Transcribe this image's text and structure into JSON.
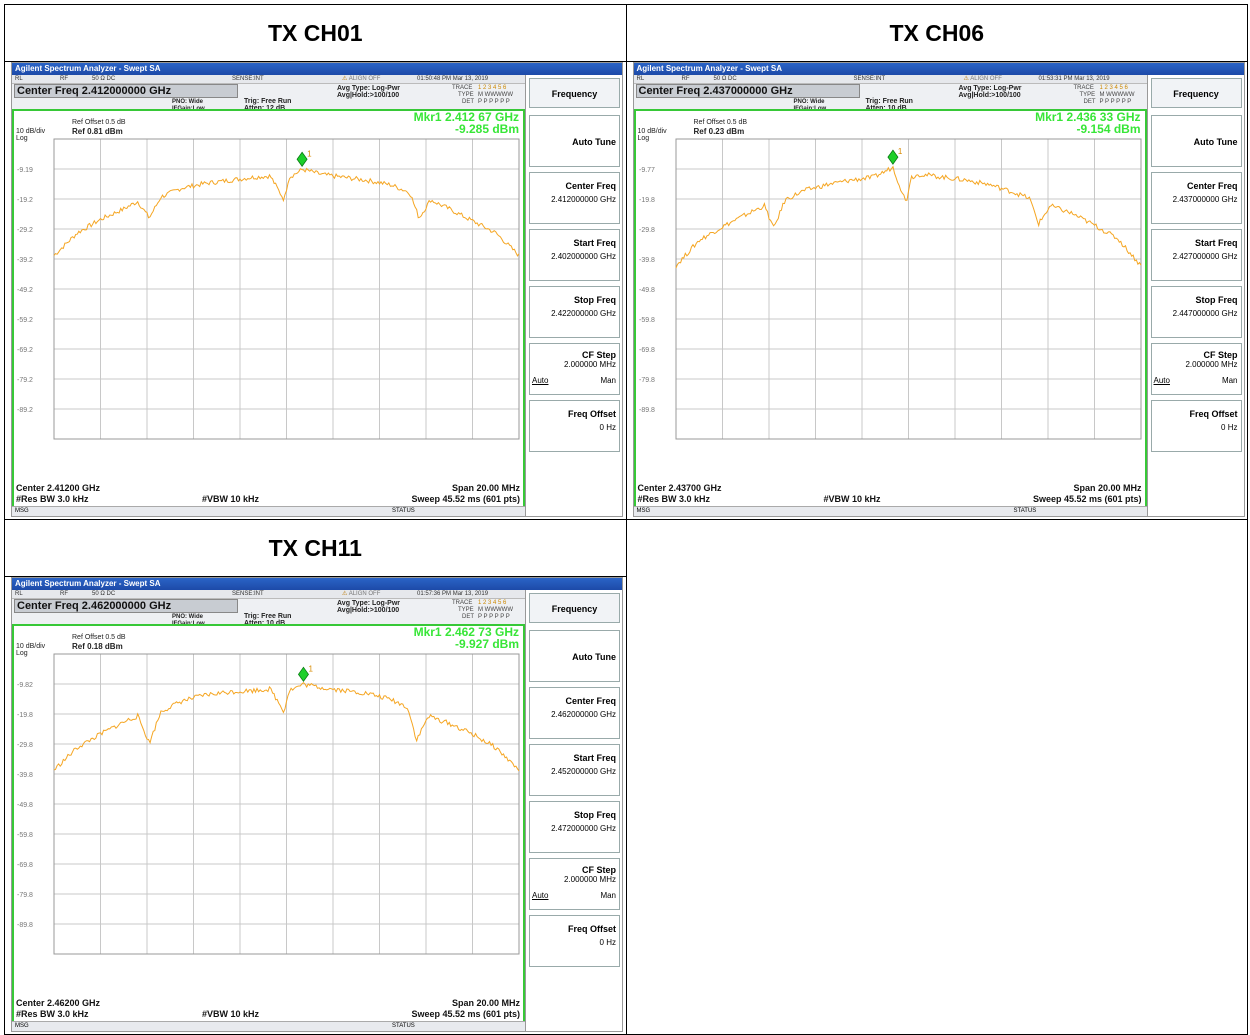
{
  "colors": {
    "trace": "#f5a623",
    "border": "#37c837",
    "marker": "#1ecf2a",
    "grid": "#c8c8c8"
  },
  "analyzers": [
    {
      "caption": "TX CH01",
      "app_title": "Agilent Spectrum Analyzer - Swept SA",
      "rf_items": [
        "RL",
        "RF",
        "50 Ω DC",
        "SENSE:INT",
        "ALIGN OFF",
        "01:50:48 PM Mar 13, 2019"
      ],
      "center_freq_label": "Center Freq 2.412000000 GHz",
      "pno": "PNO: Wide",
      "ifgain": "IFGain:Low",
      "trig": "Trig: Free Run",
      "atten": "Atten: 12 dB",
      "avg_type": "Avg Type: Log-Pwr",
      "avg_hold": "Avg|Hold:>100/100",
      "trace_labels": [
        "TRACE",
        "TYPE",
        "DET"
      ],
      "trace_values": [
        "1 2 3 4 5 6",
        "M WWWWW",
        "P P P P P P"
      ],
      "ref_offset": "Ref Offset 0.5 dB",
      "ref_level": "Ref 0.81 dBm",
      "div": "10 dB/div",
      "log": "Log",
      "marker_line1": "Mkr1 2.412 67 GHz",
      "marker_line2": "-9.285 dBm",
      "y_ticks": [
        "-9.19",
        "-19.2",
        "-29.2",
        "-39.2",
        "-49.2",
        "-59.2",
        "-69.2",
        "-79.2",
        "-89.2"
      ],
      "center_bottom": "Center 2.41200 GHz",
      "res_bw": "#Res BW 3.0 kHz",
      "vbw": "#VBW 10 kHz",
      "span": "Span 20.00 MHz",
      "sweep": "Sweep  45.52 ms (601 pts)",
      "msg": "MSG",
      "status": "STATUS",
      "softkeys": {
        "header": "Frequency",
        "auto_tune": "Auto Tune",
        "center_freq": "Center Freq",
        "center_freq_val": "2.412000000 GHz",
        "start_freq": "Start Freq",
        "start_freq_val": "2.402000000 GHz",
        "stop_freq": "Stop Freq",
        "stop_freq_val": "2.422000000 GHz",
        "cf_step": "CF Step",
        "cf_step_val": "2.000000 MHz",
        "cf_auto": "Auto",
        "cf_man": "Man",
        "freq_offset": "Freq Offset",
        "freq_offset_val": "0 Hz"
      }
    },
    {
      "caption": "TX CH06",
      "app_title": "Agilent Spectrum Analyzer - Swept SA",
      "rf_items": [
        "RL",
        "RF",
        "50 Ω DC",
        "SENSE:INT",
        "ALIGN OFF",
        "01:53:31 PM Mar 13, 2019"
      ],
      "center_freq_label": "Center Freq 2.437000000 GHz",
      "pno": "PNO: Wide",
      "ifgain": "IFGain:Low",
      "trig": "Trig: Free Run",
      "atten": "Atten: 10 dB",
      "avg_type": "Avg Type: Log-Pwr",
      "avg_hold": "Avg|Hold:>100/100",
      "trace_labels": [
        "TRACE",
        "TYPE",
        "DET"
      ],
      "trace_values": [
        "1 2 3 4 5 6",
        "M WWWWW",
        "P P P P P P"
      ],
      "ref_offset": "Ref Offset 0.5 dB",
      "ref_level": "Ref 0.23 dBm",
      "div": "10 dB/div",
      "log": "Log",
      "marker_line1": "Mkr1 2.436 33 GHz",
      "marker_line2": "-9.154 dBm",
      "y_ticks": [
        "-9.77",
        "-19.8",
        "-29.8",
        "-39.8",
        "-49.8",
        "-59.8",
        "-69.8",
        "-79.8",
        "-89.8"
      ],
      "center_bottom": "Center 2.43700 GHz",
      "res_bw": "#Res BW 3.0 kHz",
      "vbw": "#VBW 10 kHz",
      "span": "Span 20.00 MHz",
      "sweep": "Sweep  45.52 ms (601 pts)",
      "msg": "MSG",
      "status": "STATUS",
      "softkeys": {
        "header": "Frequency",
        "auto_tune": "Auto Tune",
        "center_freq": "Center Freq",
        "center_freq_val": "2.437000000 GHz",
        "start_freq": "Start Freq",
        "start_freq_val": "2.427000000 GHz",
        "stop_freq": "Stop Freq",
        "stop_freq_val": "2.447000000 GHz",
        "cf_step": "CF Step",
        "cf_step_val": "2.000000 MHz",
        "cf_auto": "Auto",
        "cf_man": "Man",
        "freq_offset": "Freq Offset",
        "freq_offset_val": "0 Hz"
      }
    },
    {
      "caption": "TX CH11",
      "app_title": "Agilent Spectrum Analyzer - Swept SA",
      "rf_items": [
        "RL",
        "RF",
        "50 Ω DC",
        "SENSE:INT",
        "ALIGN OFF",
        "01:57:36 PM Mar 13, 2019"
      ],
      "center_freq_label": "Center Freq 2.462000000 GHz",
      "pno": "PNO: Wide",
      "ifgain": "IFGain:Low",
      "trig": "Trig: Free Run",
      "atten": "Atten: 10 dB",
      "avg_type": "Avg Type: Log-Pwr",
      "avg_hold": "Avg|Hold:>100/100",
      "trace_labels": [
        "TRACE",
        "TYPE",
        "DET"
      ],
      "trace_values": [
        "1 2 3 4 5 6",
        "M WWWWW",
        "P P P P P P"
      ],
      "ref_offset": "Ref Offset 0.5 dB",
      "ref_level": "Ref 0.18 dBm",
      "div": "10 dB/div",
      "log": "Log",
      "marker_line1": "Mkr1 2.462 73 GHz",
      "marker_line2": "-9.927 dBm",
      "y_ticks": [
        "-9.82",
        "-19.8",
        "-29.8",
        "-39.8",
        "-49.8",
        "-59.8",
        "-69.8",
        "-79.8",
        "-89.8"
      ],
      "center_bottom": "Center 2.46200 GHz",
      "res_bw": "#Res BW 3.0 kHz",
      "vbw": "#VBW 10 kHz",
      "span": "Span 20.00 MHz",
      "sweep": "Sweep  45.52 ms (601 pts)",
      "msg": "MSG",
      "status": "STATUS",
      "softkeys": {
        "header": "Frequency",
        "auto_tune": "Auto Tune",
        "center_freq": "Center Freq",
        "center_freq_val": "2.462000000 GHz",
        "start_freq": "Start Freq",
        "start_freq_val": "2.452000000 GHz",
        "stop_freq": "Stop Freq",
        "stop_freq_val": "2.472000000 GHz",
        "cf_step": "CF Step",
        "cf_step_val": "2.000000 MHz",
        "cf_auto": "Auto",
        "cf_man": "Man",
        "freq_offset": "Freq Offset",
        "freq_offset_val": "0 Hz"
      }
    }
  ],
  "chart_data": [
    {
      "type": "line",
      "title": "TX CH01",
      "xlabel": "",
      "ylabel": "",
      "xlim": [
        2402.0,
        2422.0
      ],
      "ylim": [
        -99.19,
        0.81
      ],
      "grid": true,
      "marker": {
        "x": 2412.67,
        "y": -9.285
      },
      "series": [
        {
          "x": [
            2402.0,
            2403.0,
            2404.0,
            2405.0,
            2405.6,
            2406.1,
            2406.6,
            2407.5,
            2408.5,
            2409.5,
            2410.5,
            2411.3,
            2411.9,
            2412.1,
            2412.7,
            2413.5,
            2414.5,
            2415.5,
            2416.5,
            2417.3,
            2417.7,
            2418.2,
            2419.0,
            2420.0,
            2421.0,
            2422.0
          ],
          "y": [
            -38.0,
            -30.5,
            -26.0,
            -22.5,
            -20.0,
            -25.5,
            -18.5,
            -15.5,
            -14.0,
            -13.0,
            -12.0,
            -11.5,
            -19.5,
            -12.0,
            -9.3,
            -11.0,
            -12.0,
            -13.0,
            -14.5,
            -17.0,
            -25.5,
            -19.5,
            -22.5,
            -26.5,
            -30.5,
            -38.0
          ]
        }
      ]
    },
    {
      "type": "line",
      "title": "TX CH06",
      "xlabel": "",
      "ylabel": "",
      "xlim": [
        2427.0,
        2447.0
      ],
      "ylim": [
        -99.77,
        0.23
      ],
      "grid": true,
      "marker": {
        "x": 2436.33,
        "y": -9.154
      },
      "series": [
        {
          "x": [
            2427.0,
            2428.0,
            2429.0,
            2430.0,
            2430.8,
            2431.2,
            2431.7,
            2432.5,
            2433.5,
            2434.5,
            2435.5,
            2436.33,
            2436.9,
            2437.1,
            2437.5,
            2438.5,
            2439.5,
            2440.5,
            2441.5,
            2442.2,
            2442.6,
            2443.1,
            2444.0,
            2445.0,
            2446.0,
            2447.0
          ],
          "y": [
            -42.0,
            -33.5,
            -29.0,
            -25.0,
            -22.0,
            -29.5,
            -20.0,
            -17.0,
            -15.0,
            -13.5,
            -12.5,
            -9.2,
            -21.0,
            -12.5,
            -11.5,
            -12.5,
            -13.5,
            -15.0,
            -17.5,
            -19.5,
            -28.0,
            -22.0,
            -24.5,
            -28.5,
            -33.0,
            -42.0
          ]
        }
      ]
    },
    {
      "type": "line",
      "title": "TX CH11",
      "xlabel": "",
      "ylabel": "",
      "xlim": [
        2452.0,
        2472.0
      ],
      "ylim": [
        -99.82,
        0.18
      ],
      "grid": true,
      "marker": {
        "x": 2462.73,
        "y": -9.927
      },
      "series": [
        {
          "x": [
            2452.0,
            2453.0,
            2454.0,
            2455.0,
            2455.6,
            2456.1,
            2456.6,
            2457.5,
            2458.5,
            2459.5,
            2460.5,
            2461.3,
            2461.9,
            2462.1,
            2462.73,
            2463.5,
            2464.5,
            2465.5,
            2466.5,
            2467.2,
            2467.6,
            2468.1,
            2469.0,
            2470.0,
            2471.0,
            2472.0
          ],
          "y": [
            -38.5,
            -31.0,
            -26.5,
            -22.5,
            -20.5,
            -29.5,
            -19.0,
            -15.5,
            -13.5,
            -12.5,
            -12.0,
            -11.5,
            -19.0,
            -12.0,
            -9.9,
            -11.0,
            -12.0,
            -13.0,
            -15.0,
            -17.5,
            -28.5,
            -20.5,
            -23.0,
            -26.5,
            -31.0,
            -38.5
          ]
        }
      ]
    }
  ]
}
